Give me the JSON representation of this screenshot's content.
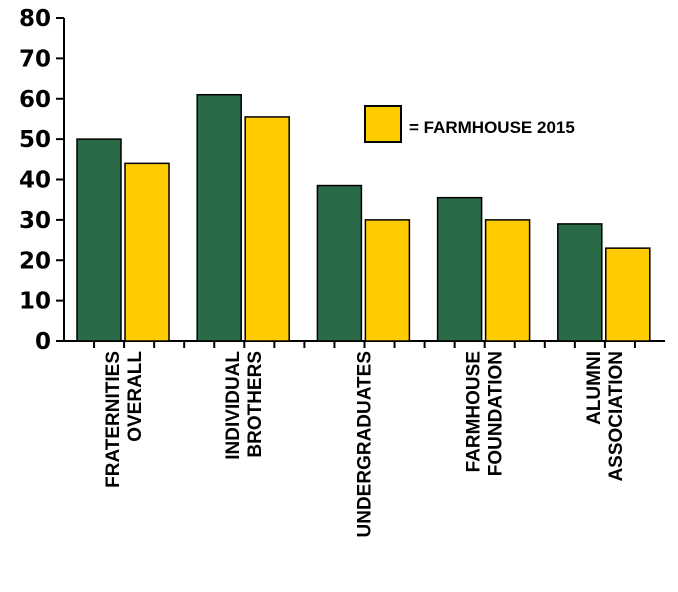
{
  "chart_data": {
    "type": "bar",
    "categories": [
      [
        "FRATERNITIES",
        "OVERALL"
      ],
      [
        "INDIVIDUAL",
        "BROTHERS"
      ],
      [
        "UNDERGRADUATES"
      ],
      [
        "FARMHOUSE",
        "FOUNDATION"
      ],
      [
        "ALUMNI",
        "ASSOCIATION"
      ]
    ],
    "series": [
      {
        "values": [
          50,
          61,
          38.5,
          35.5,
          29
        ],
        "color": "#2a6a47"
      },
      {
        "name": "= FARMHOUSE 2015",
        "values": [
          44,
          55.5,
          30,
          30,
          23
        ],
        "color": "#ffcc00"
      }
    ],
    "ylim": [
      0,
      80
    ],
    "yticks": [
      0,
      10,
      20,
      30,
      40,
      50,
      60,
      70,
      80
    ],
    "grid": false,
    "legend": {
      "position": "top-right",
      "label": "= FARMHOUSE 2015",
      "color": "#ffcc00"
    }
  }
}
